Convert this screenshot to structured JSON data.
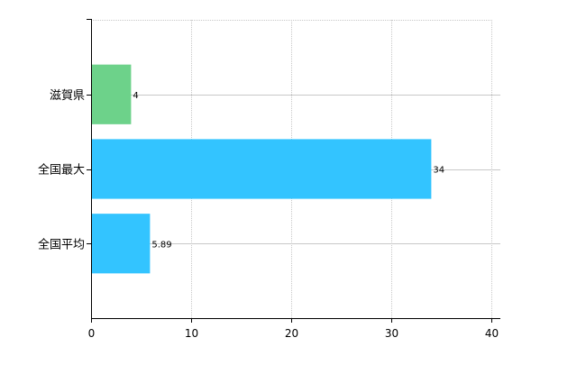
{
  "chart_data": {
    "type": "bar",
    "orientation": "horizontal",
    "categories": [
      "滋賀県",
      "全国最大",
      "全国平均"
    ],
    "values": [
      4,
      34,
      5.89
    ],
    "data_labels": [
      "4",
      "34",
      "5.89"
    ],
    "colors": [
      "#6dd28a",
      "#33c4ff",
      "#33c4ff"
    ],
    "xlim": [
      0,
      40
    ],
    "x_ticks": [
      0,
      10,
      20,
      30,
      40
    ],
    "x_tick_labels": [
      "0",
      "10",
      "20",
      "30",
      "40"
    ],
    "grid": true,
    "legend": "none",
    "title": "",
    "xlabel": "",
    "ylabel": ""
  }
}
